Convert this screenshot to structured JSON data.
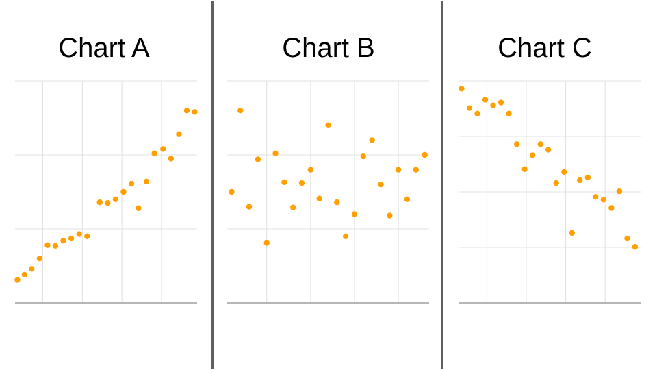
{
  "colors": {
    "point": "#ffa000",
    "grid": "#e0e0e0",
    "axis": "#9e9e9e",
    "divider": "#5f5f5f"
  },
  "chart_data": [
    {
      "type": "scatter",
      "title": "Chart A",
      "xlabel": "",
      "ylabel": "",
      "xlim": [
        0,
        23
      ],
      "ylim": [
        0,
        3
      ],
      "x_grid": [
        3.5,
        8.5,
        13.5,
        18.5
      ],
      "y_grid": [
        1,
        2,
        3
      ],
      "grid": true,
      "legend": "none",
      "x": [
        0.3,
        1.2,
        2.1,
        3.1,
        4.1,
        5.1,
        6.1,
        7.1,
        8.1,
        9.1,
        10.7,
        11.7,
        12.7,
        13.7,
        14.7,
        15.6,
        16.6,
        17.6,
        18.7,
        19.7,
        20.7,
        21.7,
        22.7
      ],
      "y": [
        0.31,
        0.38,
        0.46,
        0.6,
        0.78,
        0.77,
        0.84,
        0.87,
        0.93,
        0.9,
        1.36,
        1.35,
        1.4,
        1.5,
        1.61,
        1.28,
        1.64,
        2.02,
        2.08,
        1.95,
        2.28,
        2.6,
        2.58
      ]
    },
    {
      "type": "scatter",
      "title": "Chart B",
      "xlabel": "",
      "ylabel": "",
      "xlim": [
        0,
        23
      ],
      "ylim": [
        0,
        3
      ],
      "x_grid": [
        4.5,
        9.5,
        14.5,
        19.5
      ],
      "y_grid": [
        1,
        2,
        3
      ],
      "grid": true,
      "legend": "none",
      "x": [
        0.5,
        1.5,
        2.5,
        3.5,
        4.5,
        5.5,
        6.5,
        7.5,
        8.5,
        9.5,
        10.5,
        11.5,
        12.5,
        13.5,
        14.5,
        15.5,
        16.5,
        17.5,
        18.5,
        19.5,
        20.5,
        21.5,
        22.5
      ],
      "y": [
        1.5,
        2.6,
        1.3,
        1.94,
        0.81,
        2.02,
        1.63,
        1.29,
        1.62,
        1.8,
        1.41,
        2.4,
        1.36,
        0.9,
        1.2,
        1.98,
        2.2,
        1.6,
        1.18,
        1.8,
        1.4,
        1.8,
        2.0
      ]
    },
    {
      "type": "scatter",
      "title": "Chart C",
      "xlabel": "",
      "ylabel": "",
      "xlim": [
        0,
        23
      ],
      "ylim": [
        0,
        4
      ],
      "x_grid": [
        3.5,
        8.5,
        13.5,
        18.5
      ],
      "y_grid": [
        1,
        2,
        3,
        4
      ],
      "grid": true,
      "legend": "none",
      "x": [
        0.3,
        1.3,
        2.3,
        3.3,
        4.3,
        5.3,
        6.3,
        7.3,
        8.3,
        9.3,
        10.3,
        11.3,
        12.3,
        13.3,
        14.3,
        15.3,
        16.3,
        17.3,
        18.3,
        19.3,
        20.3,
        21.3,
        22.3
      ],
      "y": [
        3.86,
        3.51,
        3.41,
        3.66,
        3.56,
        3.61,
        3.41,
        2.86,
        2.41,
        2.66,
        2.86,
        2.76,
        2.16,
        2.36,
        1.26,
        2.21,
        2.26,
        1.91,
        1.86,
        1.71,
        2.01,
        1.16,
        1.01
      ]
    }
  ]
}
